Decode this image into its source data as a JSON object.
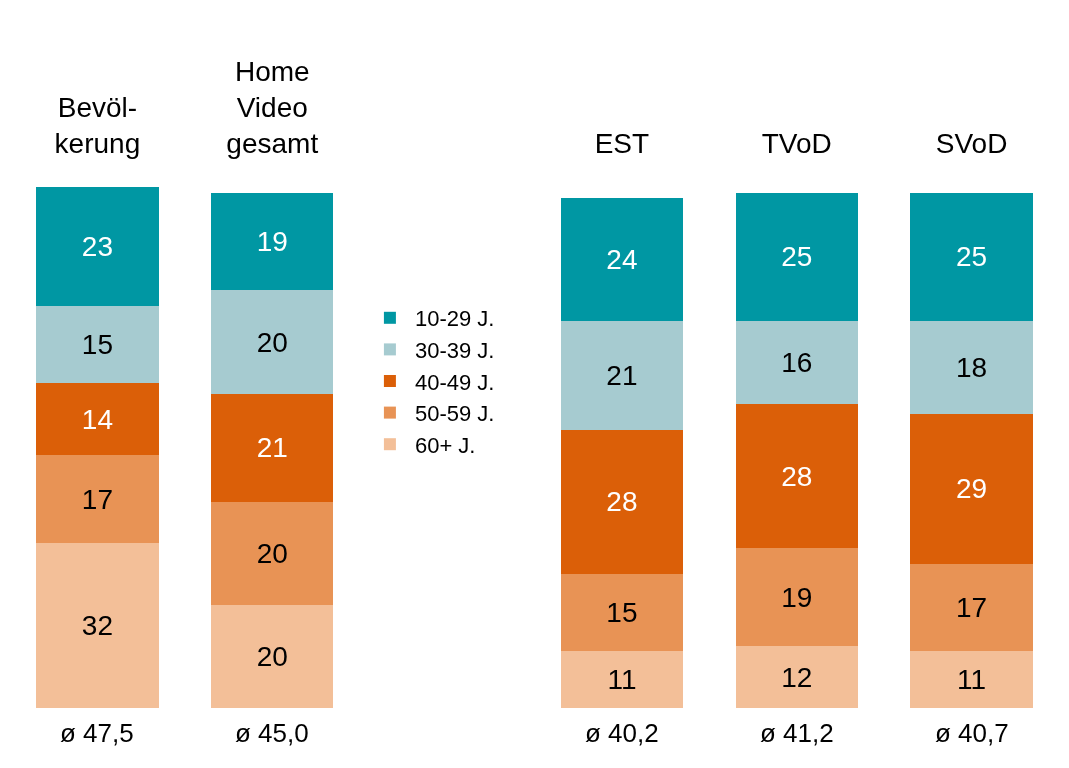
{
  "chart_data": {
    "type": "bar",
    "stacked": true,
    "data_labels": true,
    "legend": "center",
    "categories": [
      "Bevöl-\nkerung",
      "Home\nVideo\ngesamt",
      null,
      "EST",
      "TVoD",
      "SVoD"
    ],
    "series": [
      {
        "name": "60+ J.",
        "color": "#f3bf98",
        "values": [
          32,
          20,
          null,
          11,
          12,
          11
        ]
      },
      {
        "name": "50-59 J.",
        "color": "#e89355",
        "values": [
          17,
          20,
          null,
          15,
          19,
          17
        ]
      },
      {
        "name": "40-49 J.",
        "color": "#db5f08",
        "values": [
          14,
          21,
          null,
          28,
          28,
          29
        ]
      },
      {
        "name": "30-39 J.",
        "color": "#a6cbd0",
        "values": [
          15,
          20,
          null,
          21,
          16,
          18
        ]
      },
      {
        "name": "10-29 J.",
        "color": "#0097a3",
        "values": [
          23,
          19,
          null,
          24,
          25,
          25
        ]
      }
    ],
    "annotations": [
      "ø 47,5",
      "ø 45,0",
      "ø 40,2",
      "ø 41,2",
      "ø 40,7"
    ]
  }
}
